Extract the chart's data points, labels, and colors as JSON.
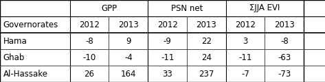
{
  "col_groups": [
    "GPP",
    "PSN net",
    "ΣJJA EVI"
  ],
  "sub_cols": [
    "2012",
    "2013",
    "2012",
    "2013",
    "2012",
    "2013"
  ],
  "row_label_header": "Governorates",
  "rows": [
    "Hama",
    "Ghab",
    "Al-Hassake"
  ],
  "values": [
    [
      "-8",
      "9",
      "-9",
      "22",
      "3",
      "-8"
    ],
    [
      "-10",
      "-4",
      "-11",
      "24",
      "-11",
      "-63"
    ],
    [
      "26",
      "164",
      "33",
      "237",
      "-7",
      "-73"
    ]
  ],
  "bg_color": "#ffffff",
  "border_color": "#000000",
  "text_color": "#000000",
  "font_size": 8.5,
  "c_edges": [
    0.0,
    0.215,
    0.335,
    0.455,
    0.575,
    0.695,
    0.815,
    0.935,
    1.0
  ],
  "n_rows": 5
}
